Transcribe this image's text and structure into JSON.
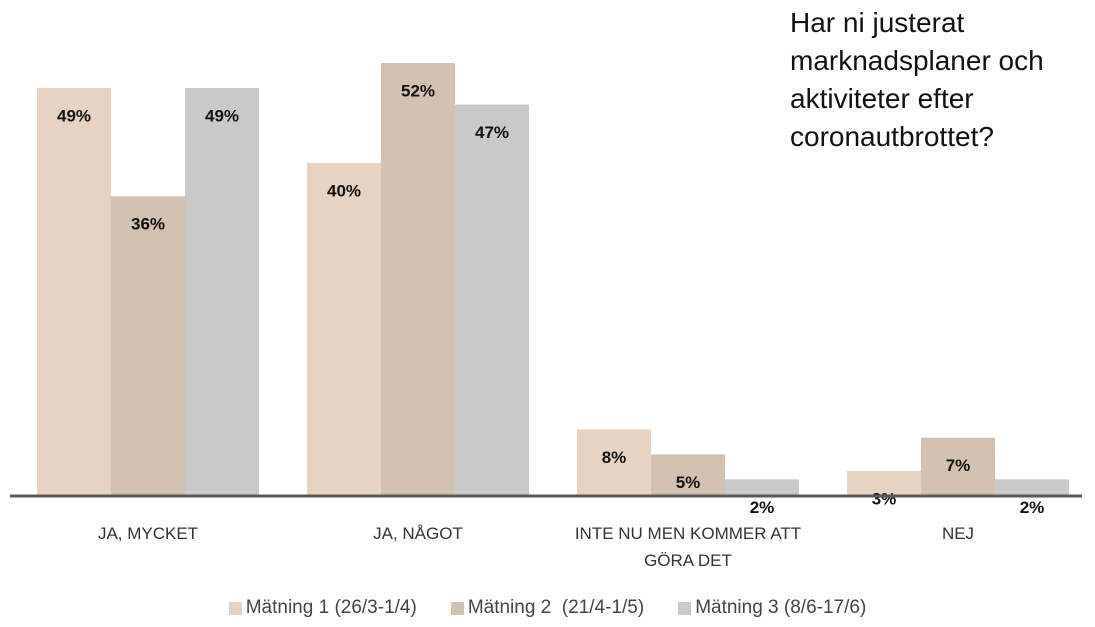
{
  "chart_data": {
    "type": "bar",
    "title": "Har ni justerat marknadsplaner och aktiviteter efter coronautbrottet?",
    "categories": [
      "JA, MYCKET",
      "JA, NÅGOT",
      "INTE NU MEN KOMMER ATT GÖRA DET",
      "NEJ"
    ],
    "series": [
      {
        "name": "Mätning 1 (26/3-1/4)",
        "color": "#e6d3c2",
        "values": [
          49,
          40,
          8,
          3
        ],
        "value_labels": [
          "49%",
          "40%",
          "8%",
          "3%"
        ]
      },
      {
        "name": "Mätning 2  (21/4-1/5)",
        "color": "#d3c1b1",
        "values": [
          36,
          52,
          5,
          7
        ],
        "value_labels": [
          "36%",
          "52%",
          "5%",
          "7%"
        ]
      },
      {
        "name": "Mätning 3 (8/6-17/6)",
        "color": "#c9c9c9",
        "values": [
          49,
          47,
          2,
          2
        ],
        "value_labels": [
          "49%",
          "47%",
          "2%",
          "2%"
        ]
      }
    ],
    "legend": "bottom"
  }
}
